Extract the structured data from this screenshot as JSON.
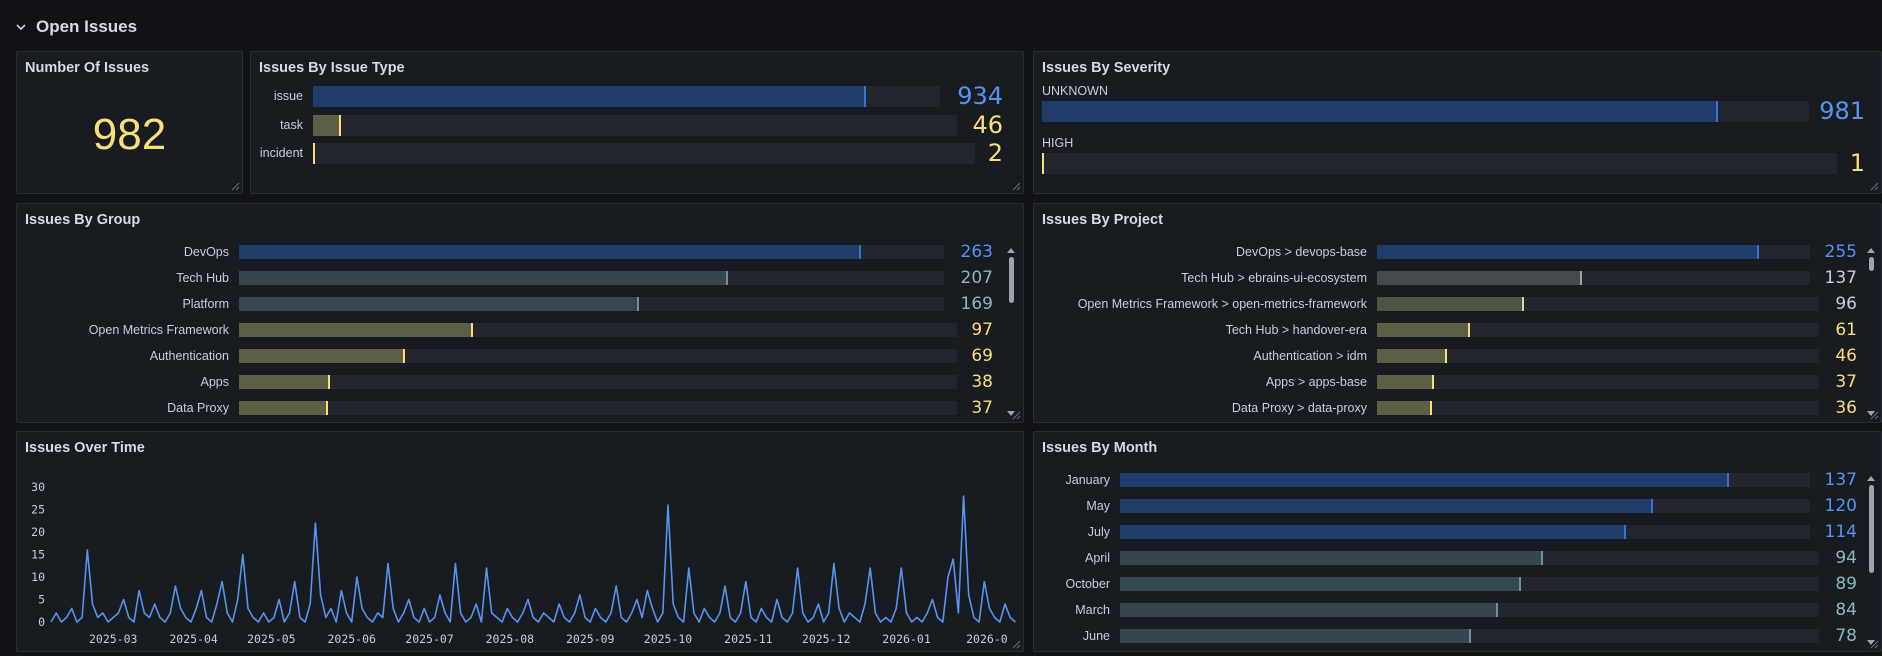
{
  "row": {
    "title": "Open Issues"
  },
  "colors": {
    "blue_fill": "#203c6b",
    "blue_cap": "#3274d9",
    "blue_text": "#5794f2",
    "slate_fill": "#37474f",
    "slate_cap": "#6c8fa8",
    "slate_text": "#8ab8c2",
    "olive_fill": "#5c5e45",
    "olive_cap": "#fade7a",
    "olive_text": "#fade7a",
    "neutral_fill": "#434a4c",
    "neutral_text": "#c7d0d9"
  },
  "panels": {
    "number_of_issues": {
      "title": "Number Of Issues",
      "value": "982"
    },
    "by_type": {
      "title": "Issues By Issue Type",
      "max": 934,
      "items": [
        {
          "label": "issue",
          "value": 934,
          "display": "934",
          "tone": "blue"
        },
        {
          "label": "task",
          "value": 46,
          "display": "46",
          "tone": "olive"
        },
        {
          "label": "incident",
          "value": 2,
          "display": "2",
          "tone": "olive"
        }
      ]
    },
    "by_severity": {
      "title": "Issues By Severity",
      "max": 981,
      "items": [
        {
          "label": "UNKNOWN",
          "value": 981,
          "display": "981",
          "tone": "blue"
        },
        {
          "label": "HIGH",
          "value": 1,
          "display": "1",
          "tone": "olive"
        }
      ]
    },
    "by_group": {
      "title": "Issues By Group",
      "max": 263,
      "items": [
        {
          "label": "DevOps",
          "value": 263,
          "display": "263",
          "tone": "blue"
        },
        {
          "label": "Tech Hub",
          "value": 207,
          "display": "207",
          "tone": "slate"
        },
        {
          "label": "Platform",
          "value": 169,
          "display": "169",
          "tone": "slate"
        },
        {
          "label": "Open Metrics Framework",
          "value": 97,
          "display": "97",
          "tone": "olive"
        },
        {
          "label": "Authentication",
          "value": 69,
          "display": "69",
          "tone": "olive"
        },
        {
          "label": "Apps",
          "value": 38,
          "display": "38",
          "tone": "olive"
        },
        {
          "label": "Data Proxy",
          "value": 37,
          "display": "37",
          "tone": "olive"
        }
      ]
    },
    "by_project": {
      "title": "Issues By Project",
      "max": 255,
      "items": [
        {
          "label": "DevOps > devops-base",
          "value": 255,
          "display": "255",
          "tone": "blue"
        },
        {
          "label": "Tech Hub > ebrains-ui-ecosystem",
          "value": 137,
          "display": "137",
          "tone": "neutral"
        },
        {
          "label": "Open Metrics Framework > open-metrics-framework",
          "value": 96,
          "display": "96",
          "tone": "olivegray"
        },
        {
          "label": "Tech Hub > handover-era",
          "value": 61,
          "display": "61",
          "tone": "olive"
        },
        {
          "label": "Authentication > idm",
          "value": 46,
          "display": "46",
          "tone": "olive"
        },
        {
          "label": "Apps > apps-base",
          "value": 37,
          "display": "37",
          "tone": "olive"
        },
        {
          "label": "Data Proxy > data-proxy",
          "value": 36,
          "display": "36",
          "tone": "olive"
        }
      ]
    },
    "over_time": {
      "title": "Issues Over Time"
    },
    "by_month": {
      "title": "Issues By Month",
      "max": 137,
      "items": [
        {
          "label": "January",
          "value": 137,
          "display": "137",
          "tone": "blue"
        },
        {
          "label": "May",
          "value": 120,
          "display": "120",
          "tone": "blue"
        },
        {
          "label": "July",
          "value": 114,
          "display": "114",
          "tone": "blue"
        },
        {
          "label": "April",
          "value": 94,
          "display": "94",
          "tone": "slate"
        },
        {
          "label": "October",
          "value": 89,
          "display": "89",
          "tone": "slate"
        },
        {
          "label": "March",
          "value": 84,
          "display": "84",
          "tone": "slate"
        },
        {
          "label": "June",
          "value": 78,
          "display": "78",
          "tone": "slate"
        }
      ]
    }
  },
  "chart_data": {
    "type": "line",
    "title": "Issues Over Time",
    "xlabel": "",
    "ylabel": "",
    "ylim": [
      0,
      30
    ],
    "yticks": [
      0,
      5,
      10,
      15,
      20,
      25,
      30
    ],
    "xticks": [
      "2025-03",
      "2025-04",
      "2025-05",
      "2025-06",
      "2025-07",
      "2025-08",
      "2025-09",
      "2025-10",
      "2025-11",
      "2025-12",
      "2026-01",
      "2026-0"
    ],
    "x_range": [
      "2025-02-05",
      "2026-02-13"
    ],
    "grid": false,
    "legend": "none",
    "series": [
      {
        "color": "#5794f2",
        "points": [
          [
            "2025-02-05",
            0
          ],
          [
            "2025-02-07",
            2
          ],
          [
            "2025-02-09",
            0
          ],
          [
            "2025-02-11",
            1
          ],
          [
            "2025-02-13",
            3
          ],
          [
            "2025-02-15",
            0
          ],
          [
            "2025-02-17",
            1
          ],
          [
            "2025-02-19",
            16
          ],
          [
            "2025-02-21",
            4
          ],
          [
            "2025-02-23",
            1
          ],
          [
            "2025-02-25",
            2
          ],
          [
            "2025-02-27",
            0
          ],
          [
            "2025-03-01",
            1
          ],
          [
            "2025-03-03",
            2
          ],
          [
            "2025-03-05",
            5
          ],
          [
            "2025-03-07",
            1
          ],
          [
            "2025-03-09",
            0
          ],
          [
            "2025-03-11",
            7
          ],
          [
            "2025-03-13",
            2
          ],
          [
            "2025-03-15",
            1
          ],
          [
            "2025-03-17",
            4
          ],
          [
            "2025-03-19",
            1
          ],
          [
            "2025-03-21",
            0
          ],
          [
            "2025-03-23",
            2
          ],
          [
            "2025-03-25",
            8
          ],
          [
            "2025-03-27",
            3
          ],
          [
            "2025-03-29",
            1
          ],
          [
            "2025-03-31",
            0
          ],
          [
            "2025-04-02",
            3
          ],
          [
            "2025-04-04",
            7
          ],
          [
            "2025-04-06",
            1
          ],
          [
            "2025-04-08",
            0
          ],
          [
            "2025-04-10",
            4
          ],
          [
            "2025-04-12",
            9
          ],
          [
            "2025-04-14",
            2
          ],
          [
            "2025-04-16",
            0
          ],
          [
            "2025-04-18",
            5
          ],
          [
            "2025-04-20",
            15
          ],
          [
            "2025-04-22",
            3
          ],
          [
            "2025-04-24",
            1
          ],
          [
            "2025-04-26",
            0
          ],
          [
            "2025-04-28",
            2
          ],
          [
            "2025-04-30",
            0
          ],
          [
            "2025-05-02",
            1
          ],
          [
            "2025-05-04",
            5
          ],
          [
            "2025-05-06",
            0
          ],
          [
            "2025-05-08",
            2
          ],
          [
            "2025-05-10",
            9
          ],
          [
            "2025-05-12",
            1
          ],
          [
            "2025-05-14",
            0
          ],
          [
            "2025-05-16",
            4
          ],
          [
            "2025-05-18",
            22
          ],
          [
            "2025-05-20",
            6
          ],
          [
            "2025-05-22",
            1
          ],
          [
            "2025-05-24",
            3
          ],
          [
            "2025-05-26",
            0
          ],
          [
            "2025-05-28",
            7
          ],
          [
            "2025-05-30",
            2
          ],
          [
            "2025-06-01",
            0
          ],
          [
            "2025-06-03",
            10
          ],
          [
            "2025-06-05",
            3
          ],
          [
            "2025-06-07",
            1
          ],
          [
            "2025-06-09",
            0
          ],
          [
            "2025-06-11",
            2
          ],
          [
            "2025-06-13",
            1
          ],
          [
            "2025-06-15",
            13
          ],
          [
            "2025-06-17",
            3
          ],
          [
            "2025-06-19",
            0
          ],
          [
            "2025-06-21",
            2
          ],
          [
            "2025-06-23",
            5
          ],
          [
            "2025-06-25",
            1
          ],
          [
            "2025-06-27",
            0
          ],
          [
            "2025-06-29",
            3
          ],
          [
            "2025-07-01",
            0
          ],
          [
            "2025-07-03",
            1
          ],
          [
            "2025-07-05",
            6
          ],
          [
            "2025-07-07",
            2
          ],
          [
            "2025-07-09",
            0
          ],
          [
            "2025-07-11",
            13
          ],
          [
            "2025-07-13",
            2
          ],
          [
            "2025-07-15",
            0
          ],
          [
            "2025-07-17",
            1
          ],
          [
            "2025-07-19",
            4
          ],
          [
            "2025-07-21",
            0
          ],
          [
            "2025-07-23",
            12
          ],
          [
            "2025-07-25",
            2
          ],
          [
            "2025-07-27",
            1
          ],
          [
            "2025-07-29",
            0
          ],
          [
            "2025-07-31",
            3
          ],
          [
            "2025-08-02",
            1
          ],
          [
            "2025-08-04",
            0
          ],
          [
            "2025-08-06",
            2
          ],
          [
            "2025-08-08",
            5
          ],
          [
            "2025-08-10",
            1
          ],
          [
            "2025-08-12",
            0
          ],
          [
            "2025-08-14",
            2
          ],
          [
            "2025-08-16",
            1
          ],
          [
            "2025-08-18",
            0
          ],
          [
            "2025-08-20",
            4
          ],
          [
            "2025-08-22",
            1
          ],
          [
            "2025-08-24",
            0
          ],
          [
            "2025-08-26",
            2
          ],
          [
            "2025-08-28",
            6
          ],
          [
            "2025-08-30",
            1
          ],
          [
            "2025-09-01",
            0
          ],
          [
            "2025-09-03",
            3
          ],
          [
            "2025-09-05",
            1
          ],
          [
            "2025-09-07",
            0
          ],
          [
            "2025-09-09",
            2
          ],
          [
            "2025-09-11",
            8
          ],
          [
            "2025-09-13",
            1
          ],
          [
            "2025-09-15",
            0
          ],
          [
            "2025-09-17",
            2
          ],
          [
            "2025-09-19",
            5
          ],
          [
            "2025-09-21",
            1
          ],
          [
            "2025-09-23",
            7
          ],
          [
            "2025-09-25",
            3
          ],
          [
            "2025-09-27",
            0
          ],
          [
            "2025-09-29",
            2
          ],
          [
            "2025-10-01",
            26
          ],
          [
            "2025-10-03",
            4
          ],
          [
            "2025-10-05",
            1
          ],
          [
            "2025-10-07",
            0
          ],
          [
            "2025-10-09",
            12
          ],
          [
            "2025-10-11",
            2
          ],
          [
            "2025-10-13",
            0
          ],
          [
            "2025-10-15",
            3
          ],
          [
            "2025-10-17",
            1
          ],
          [
            "2025-10-19",
            0
          ],
          [
            "2025-10-21",
            2
          ],
          [
            "2025-10-23",
            8
          ],
          [
            "2025-10-25",
            1
          ],
          [
            "2025-10-27",
            0
          ],
          [
            "2025-10-29",
            2
          ],
          [
            "2025-10-31",
            9
          ],
          [
            "2025-11-02",
            1
          ],
          [
            "2025-11-04",
            0
          ],
          [
            "2025-11-06",
            3
          ],
          [
            "2025-11-08",
            1
          ],
          [
            "2025-11-10",
            0
          ],
          [
            "2025-11-12",
            5
          ],
          [
            "2025-11-14",
            1
          ],
          [
            "2025-11-16",
            0
          ],
          [
            "2025-11-18",
            2
          ],
          [
            "2025-11-20",
            12
          ],
          [
            "2025-11-22",
            2
          ],
          [
            "2025-11-24",
            0
          ],
          [
            "2025-11-26",
            1
          ],
          [
            "2025-11-28",
            4
          ],
          [
            "2025-11-30",
            0
          ],
          [
            "2025-12-02",
            2
          ],
          [
            "2025-12-04",
            13
          ],
          [
            "2025-12-06",
            3
          ],
          [
            "2025-12-08",
            0
          ],
          [
            "2025-12-10",
            2
          ],
          [
            "2025-12-12",
            1
          ],
          [
            "2025-12-14",
            0
          ],
          [
            "2025-12-16",
            4
          ],
          [
            "2025-12-18",
            12
          ],
          [
            "2025-12-20",
            2
          ],
          [
            "2025-12-22",
            0
          ],
          [
            "2025-12-24",
            1
          ],
          [
            "2025-12-26",
            0
          ],
          [
            "2025-12-28",
            3
          ],
          [
            "2025-12-30",
            12
          ],
          [
            "2026-01-01",
            2
          ],
          [
            "2026-01-03",
            0
          ],
          [
            "2026-01-05",
            1
          ],
          [
            "2026-01-07",
            0
          ],
          [
            "2026-01-09",
            2
          ],
          [
            "2026-01-11",
            5
          ],
          [
            "2026-01-13",
            1
          ],
          [
            "2026-01-15",
            0
          ],
          [
            "2026-01-17",
            10
          ],
          [
            "2026-01-19",
            14
          ],
          [
            "2026-01-21",
            2
          ],
          [
            "2026-01-23",
            28
          ],
          [
            "2026-01-25",
            6
          ],
          [
            "2026-01-27",
            1
          ],
          [
            "2026-01-29",
            0
          ],
          [
            "2026-01-31",
            9
          ],
          [
            "2026-02-02",
            3
          ],
          [
            "2026-02-04",
            1
          ],
          [
            "2026-02-06",
            0
          ],
          [
            "2026-02-08",
            4
          ],
          [
            "2026-02-10",
            1
          ],
          [
            "2026-02-12",
            0
          ]
        ]
      }
    ]
  }
}
